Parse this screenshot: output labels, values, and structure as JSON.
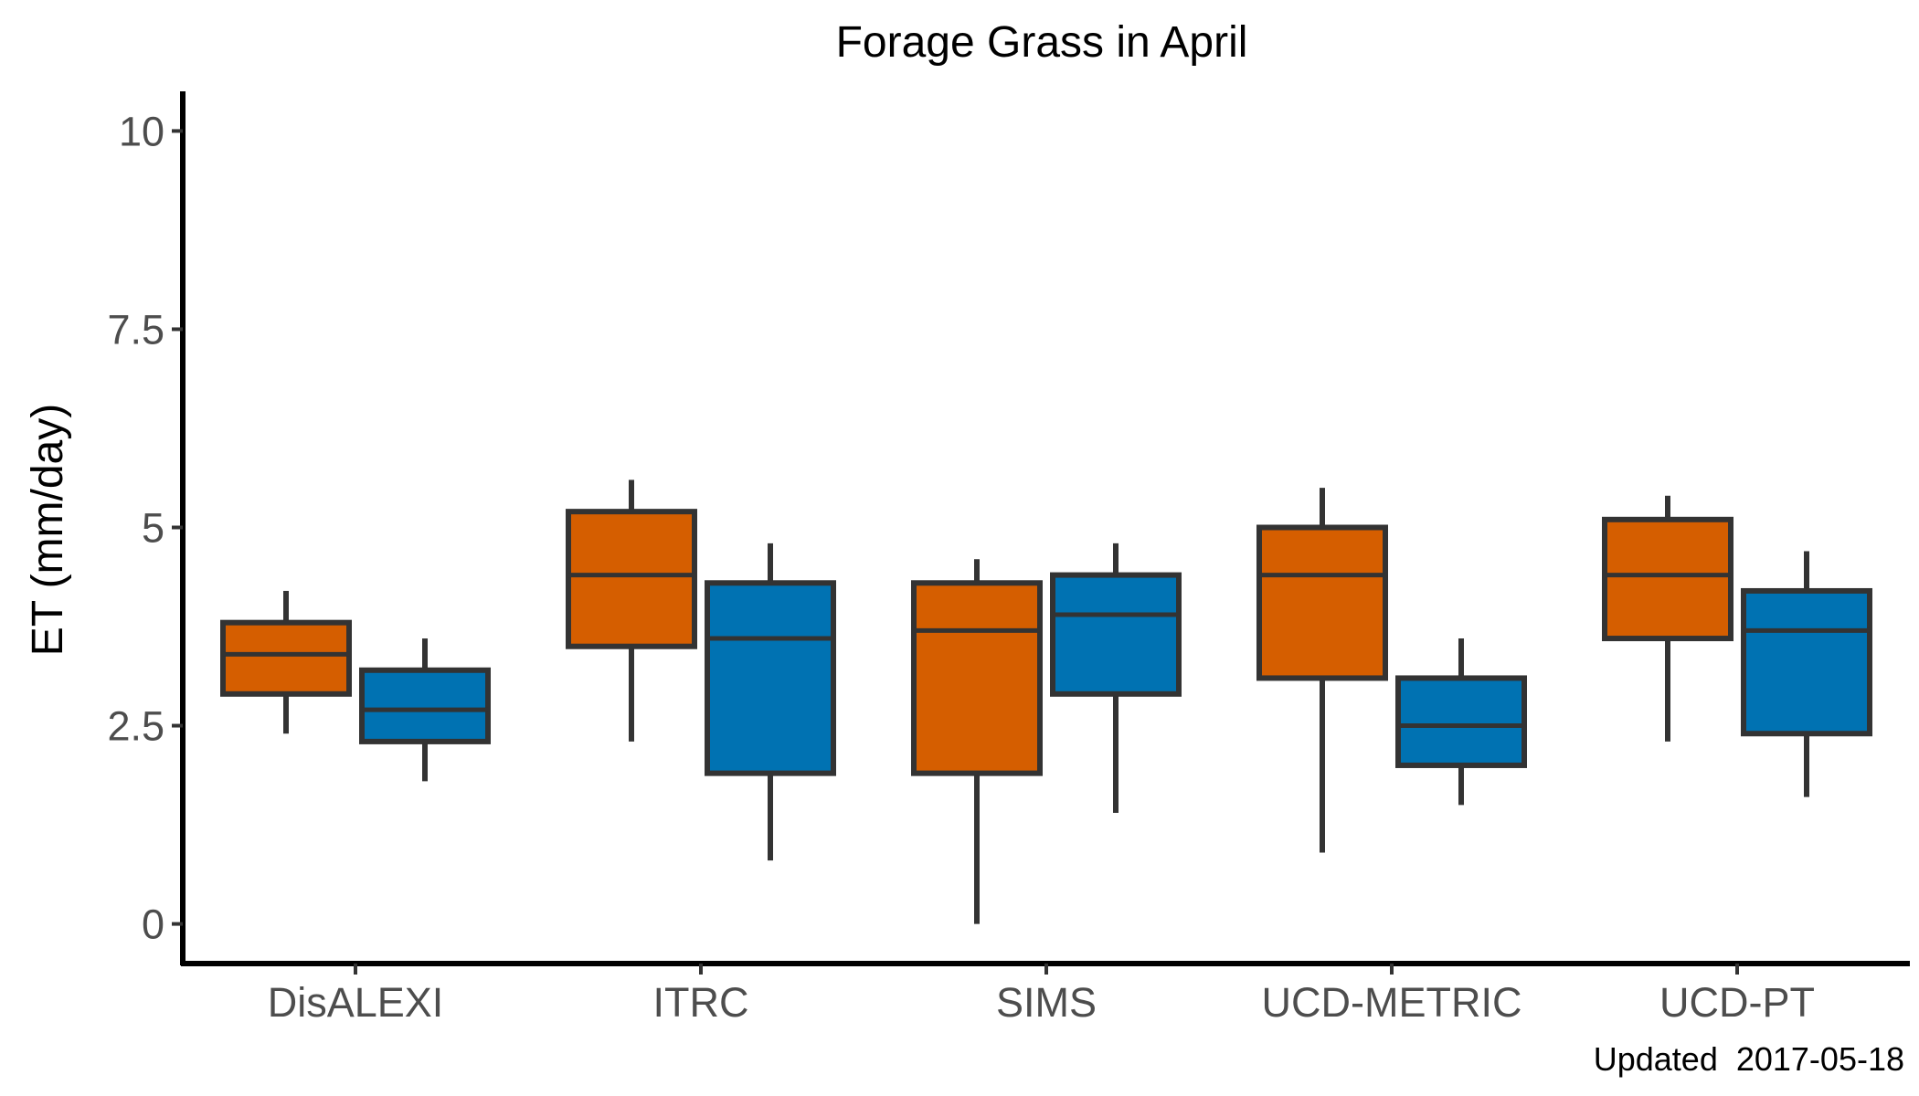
{
  "chart_data": {
    "type": "box",
    "title": "Forage Grass in April",
    "xlabel": "",
    "ylabel": "ET (mm/day)",
    "ylim": [
      -0.5,
      10.5
    ],
    "yticks": [
      0,
      2.5,
      5,
      7.5,
      10
    ],
    "ytick_labels": [
      "0",
      "2.5",
      "5",
      "7.5",
      "10"
    ],
    "grid": false,
    "legend": "none",
    "categories": [
      "DisALEXI",
      "ITRC",
      "SIMS",
      "UCD-METRIC",
      "UCD-PT"
    ],
    "series": [
      {
        "color": "#D55E00",
        "boxes": [
          {
            "whisker_low": 2.4,
            "q1": 2.9,
            "median": 3.4,
            "q3": 3.8,
            "whisker_high": 4.2
          },
          {
            "whisker_low": 2.3,
            "q1": 3.5,
            "median": 4.4,
            "q3": 5.2,
            "whisker_high": 5.6
          },
          {
            "whisker_low": 0.0,
            "q1": 1.9,
            "median": 3.7,
            "q3": 4.3,
            "whisker_high": 4.6
          },
          {
            "whisker_low": 0.9,
            "q1": 3.1,
            "median": 4.4,
            "q3": 5.0,
            "whisker_high": 5.5
          },
          {
            "whisker_low": 2.3,
            "q1": 3.6,
            "median": 4.4,
            "q3": 5.1,
            "whisker_high": 5.4
          }
        ]
      },
      {
        "color": "#0072B2",
        "boxes": [
          {
            "whisker_low": 1.8,
            "q1": 2.3,
            "median": 2.7,
            "q3": 3.2,
            "whisker_high": 3.6
          },
          {
            "whisker_low": 0.8,
            "q1": 1.9,
            "median": 3.6,
            "q3": 4.3,
            "whisker_high": 4.8
          },
          {
            "whisker_low": 1.4,
            "q1": 2.9,
            "median": 3.9,
            "q3": 4.4,
            "whisker_high": 4.8
          },
          {
            "whisker_low": 1.5,
            "q1": 2.0,
            "median": 2.5,
            "q3": 3.1,
            "whisker_high": 3.6
          },
          {
            "whisker_low": 1.6,
            "q1": 2.4,
            "median": 3.7,
            "q3": 4.2,
            "whisker_high": 4.7
          }
        ]
      }
    ],
    "caption": "Updated  2017-05-18",
    "box_outline_color": "#333333"
  }
}
